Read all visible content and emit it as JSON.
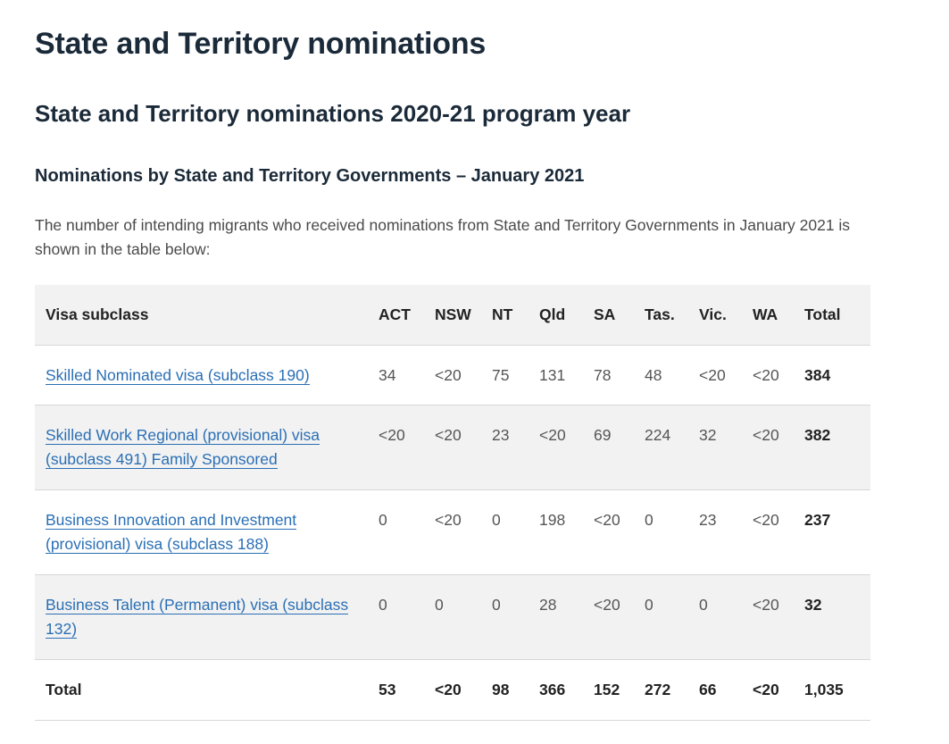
{
  "page": {
    "title": "State and Territory nominations",
    "subtitle": "State and Territory nominations 2020-21 program year",
    "section_heading": "Nominations by State and Territory Governments – January 2021",
    "intro": "The number of intending migrants who received nominations from State and Territory Governments in January 2021 is shown in the table below:"
  },
  "table": {
    "headers": [
      "Visa subclass",
      "ACT",
      "NSW",
      "NT",
      "Qld",
      "SA",
      "Tas.",
      "Vic.",
      "WA",
      "Total"
    ],
    "rows": [
      {
        "label": "Skilled Nominated visa (subclass 190)",
        "values": [
          "34",
          "<20",
          "75",
          "131",
          "78",
          "48",
          "<20",
          "<20"
        ],
        "total": "384"
      },
      {
        "label": "Skilled Work Regional (provisional) visa (subclass 491) Family Sponsored",
        "values": [
          "<20",
          "<20",
          "23",
          "<20",
          "69",
          "224",
          "32",
          "<20"
        ],
        "total": "382"
      },
      {
        "label": "Business Innovation and Investment (provisional) visa (subclass 188)",
        "values": [
          "0",
          "<20",
          "0",
          "198",
          "<20",
          "0",
          "23",
          "<20"
        ],
        "total": "237"
      },
      {
        "label": "Business Talent (Permanent) visa (subclass 132)",
        "values": [
          "0",
          "0",
          "0",
          "28",
          "<20",
          "0",
          "0",
          "<20"
        ],
        "total": "32"
      }
    ],
    "footer": {
      "label": "Total",
      "values": [
        "53",
        "<20",
        "98",
        "366",
        "152",
        "272",
        "66",
        "<20"
      ],
      "total": "1,035"
    }
  },
  "colors": {
    "heading": "#1b2a39",
    "link": "#2a6fb5",
    "row_alt": "#f2f2f2",
    "rule": "#d8d8d8"
  }
}
